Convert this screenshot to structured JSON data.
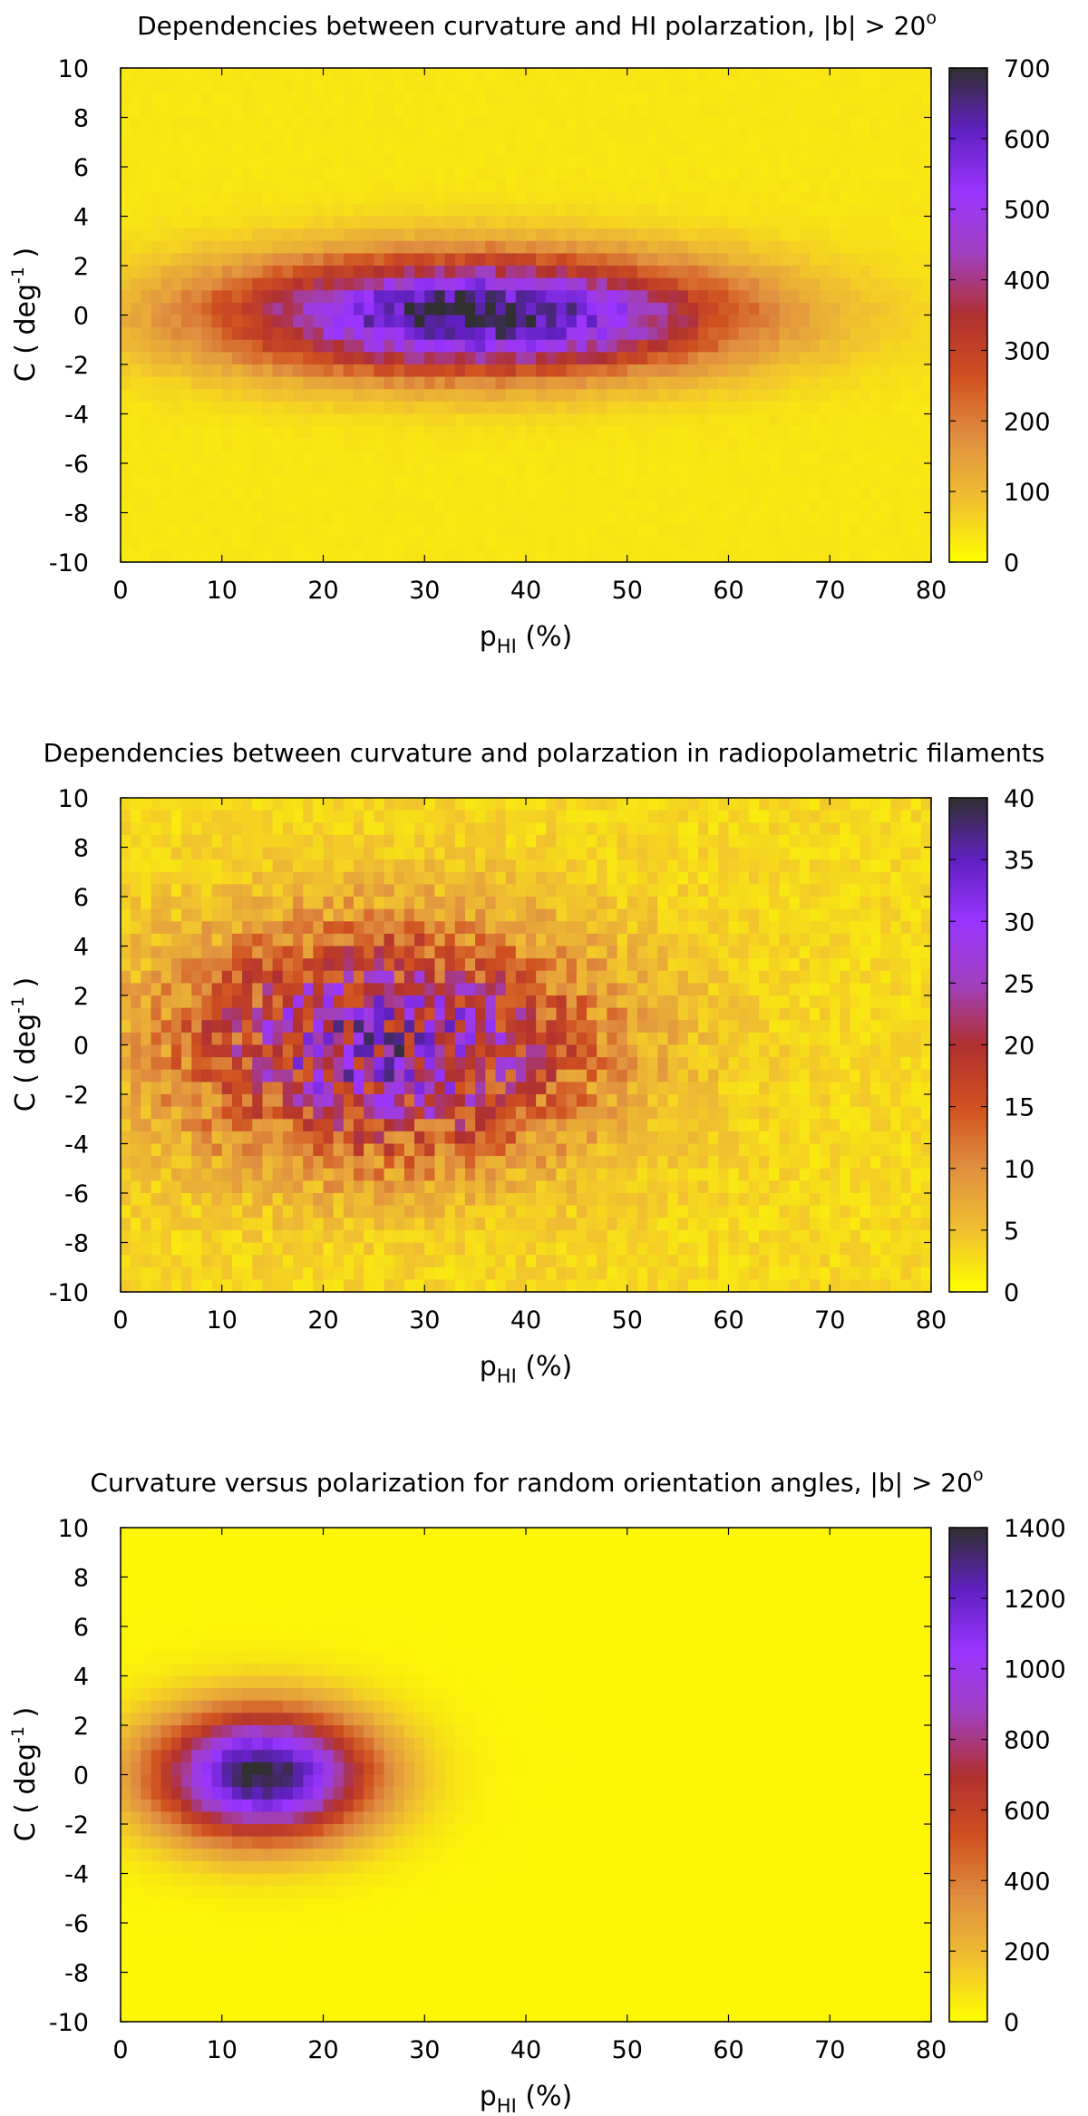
{
  "chart_data": [
    {
      "type": "heatmap",
      "title": "Dependencies between curvature and HI polarzation, |b| > 20",
      "title_superscript": "o",
      "xlabel": {
        "main": "p",
        "subscript": "HI",
        "suffix": " (%)"
      },
      "ylabel": {
        "main": "C ( deg",
        "superscript": "-1",
        "suffix": " )"
      },
      "xlim": [
        0,
        80
      ],
      "ylim": [
        -10,
        10
      ],
      "x_ticks": [
        "0",
        "10",
        "20",
        "30",
        "40",
        "50",
        "60",
        "70",
        "80"
      ],
      "y_ticks": [
        "10",
        "8",
        "6",
        "4",
        "2",
        "0",
        "-2",
        "-4",
        "-6",
        "-8",
        "-10"
      ],
      "colorbar": {
        "range": [
          0,
          700
        ],
        "ticks": [
          "700",
          "600",
          "500",
          "400",
          "300",
          "200",
          "100",
          "0"
        ]
      },
      "density_model": {
        "peak": 700,
        "center_x": 35,
        "sigma_x": 17,
        "sigma_y": 1.6,
        "background": 35,
        "noise": 0.12
      }
    },
    {
      "type": "heatmap",
      "title": "Dependencies between curvature and polarzation in radiopolametric filaments",
      "xlabel": {
        "main": "p",
        "subscript": "HI",
        "suffix": " (%)"
      },
      "ylabel": {
        "main": "C ( deg",
        "superscript": "-1",
        "suffix": " )"
      },
      "xlim": [
        0,
        80
      ],
      "ylim": [
        -10,
        10
      ],
      "x_ticks": [
        "0",
        "10",
        "20",
        "30",
        "40",
        "50",
        "60",
        "70",
        "80"
      ],
      "y_ticks": [
        "10",
        "8",
        "6",
        "4",
        "2",
        "0",
        "-2",
        "-4",
        "-6",
        "-8",
        "-10"
      ],
      "colorbar": {
        "range": [
          0,
          40
        ],
        "ticks": [
          "40",
          "35",
          "30",
          "25",
          "20",
          "15",
          "10",
          "5",
          "0"
        ]
      },
      "density_model": {
        "peak": 28,
        "center_x": 26,
        "sigma_x": 14,
        "sigma_y": 3.2,
        "background": 3,
        "noise": 0.45
      }
    },
    {
      "type": "heatmap",
      "title": "Curvature versus polarization for random orientation angles, |b| > 20",
      "title_superscript": "o",
      "xlabel": {
        "main": "p",
        "subscript": "HI",
        "suffix": " (%)"
      },
      "ylabel": {
        "main": "C ( deg",
        "superscript": "-1",
        "suffix": " )"
      },
      "xlim": [
        0,
        80
      ],
      "ylim": [
        -10,
        10
      ],
      "x_ticks": [
        "0",
        "10",
        "20",
        "30",
        "40",
        "50",
        "60",
        "70",
        "80"
      ],
      "y_ticks": [
        "10",
        "8",
        "6",
        "4",
        "2",
        "0",
        "-2",
        "-4",
        "-6",
        "-8",
        "-10"
      ],
      "colorbar": {
        "range": [
          0,
          1400
        ],
        "ticks": [
          "1400",
          "1200",
          "1000",
          "800",
          "600",
          "400",
          "200",
          "0"
        ]
      },
      "density_model": {
        "peak": 1400,
        "center_x": 14,
        "sigma_x": 7.5,
        "sigma_y": 1.8,
        "background": 25,
        "noise": 0.04
      }
    }
  ],
  "palette": [
    "#ffff00",
    "#f0c030",
    "#e09040",
    "#d05020",
    "#b03030",
    "#a040c0",
    "#9a35ff",
    "#6020c0",
    "#303030"
  ]
}
